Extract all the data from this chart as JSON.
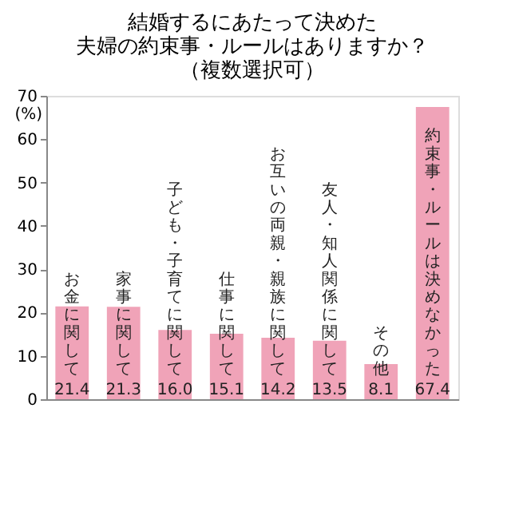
{
  "chart_data": {
    "type": "bar",
    "title": [
      "結婚するにあたって決めた",
      "夫婦の約束事・ルールはありますか？",
      "（複数選択可）"
    ],
    "ylabel": "(%)",
    "categories": [
      "お金に関して",
      "家事に関して",
      "子ども・子育てに関して",
      "仕事に関して",
      "お互いの両親・親族に関して",
      "友人・知人関係に関して",
      "その他",
      "約束事・ルールは決めなかった"
    ],
    "values": [
      21.4,
      21.3,
      16.0,
      15.1,
      14.2,
      13.5,
      8.1,
      67.4
    ],
    "value_labels": [
      "21.4",
      "21.3",
      "16.0",
      "15.1",
      "14.2",
      "13.5",
      "8.1",
      "67.4"
    ],
    "color": "#f0a3b8",
    "ylim": [
      0,
      70
    ],
    "yticks": [
      0,
      10,
      20,
      30,
      40,
      50,
      60,
      70
    ],
    "grid": false
  }
}
